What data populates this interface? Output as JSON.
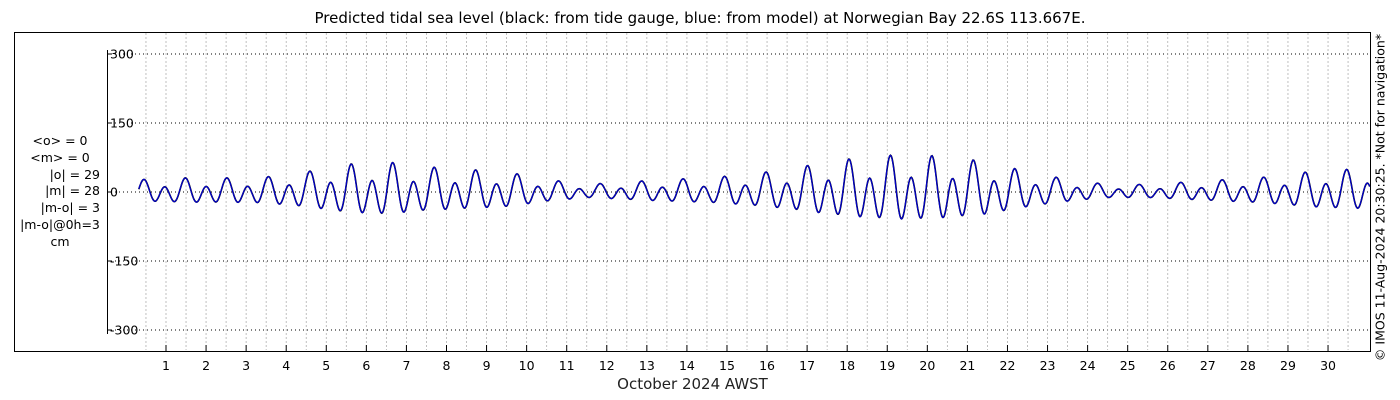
{
  "chart_data": {
    "type": "line",
    "title": "Predicted tidal sea level (black: from tide gauge, blue: from model) at Norwegian Bay 22.6S 113.667E.",
    "xlabel": "October 2024 AWST",
    "ylabel": "",
    "x_ticks": [
      "1",
      "2",
      "3",
      "4",
      "5",
      "6",
      "7",
      "8",
      "9",
      "10",
      "11",
      "12",
      "13",
      "14",
      "15",
      "16",
      "17",
      "18",
      "19",
      "20",
      "21",
      "22",
      "23",
      "24",
      "25",
      "26",
      "27",
      "28",
      "29",
      "30"
    ],
    "y_ticks": [
      300,
      150,
      0,
      -150,
      -300
    ],
    "y_tick_labels": [
      "300",
      "150",
      "0",
      "-150",
      "-300"
    ],
    "ylim": [
      -310,
      310
    ],
    "xlim": [
      0.3,
      31.2
    ],
    "grid": true,
    "units": "cm",
    "series": [
      {
        "name": "from tide gauge",
        "color": "#000000"
      },
      {
        "name": "from model",
        "color": "#0000cc"
      }
    ],
    "tide_model": {
      "start_day": 0.32,
      "end_day": 31.2,
      "semidiurnal_period_days": 0.5175,
      "amplitude_envelope": [
        [
          0.5,
          25
        ],
        [
          1.5,
          28
        ],
        [
          2.5,
          28
        ],
        [
          3.5,
          30
        ],
        [
          4.5,
          40
        ],
        [
          5.5,
          55
        ],
        [
          6.5,
          60
        ],
        [
          7.5,
          50
        ],
        [
          8.5,
          45
        ],
        [
          9.5,
          40
        ],
        [
          10.5,
          25
        ],
        [
          11.5,
          15
        ],
        [
          12.5,
          20
        ],
        [
          13.5,
          25
        ],
        [
          14.5,
          28
        ],
        [
          15.5,
          35
        ],
        [
          16.5,
          45
        ],
        [
          17.5,
          60
        ],
        [
          18.5,
          70
        ],
        [
          19.5,
          75
        ],
        [
          20.5,
          70
        ],
        [
          21.5,
          60
        ],
        [
          22.5,
          40
        ],
        [
          23.5,
          25
        ],
        [
          24.5,
          15
        ],
        [
          25.5,
          15
        ],
        [
          26.5,
          20
        ],
        [
          27.5,
          25
        ],
        [
          28.5,
          30
        ],
        [
          29.5,
          40
        ],
        [
          30.5,
          45
        ],
        [
          31.2,
          45
        ]
      ],
      "diurnal_ratio": 0.35,
      "mean": 0
    },
    "stats": {
      "mean_obs": "<o> = 0",
      "mean_model": "<m> = 0",
      "abs_obs": "|o| = 29",
      "abs_model": "|m| = 28",
      "abs_diff": "|m-o| = 3",
      "diff_0h": "|m-o|@0h=3",
      "unit": "cm"
    }
  },
  "copyright": "© IMOS 11-Aug-2024 20:30:25. *Not for navigation*"
}
